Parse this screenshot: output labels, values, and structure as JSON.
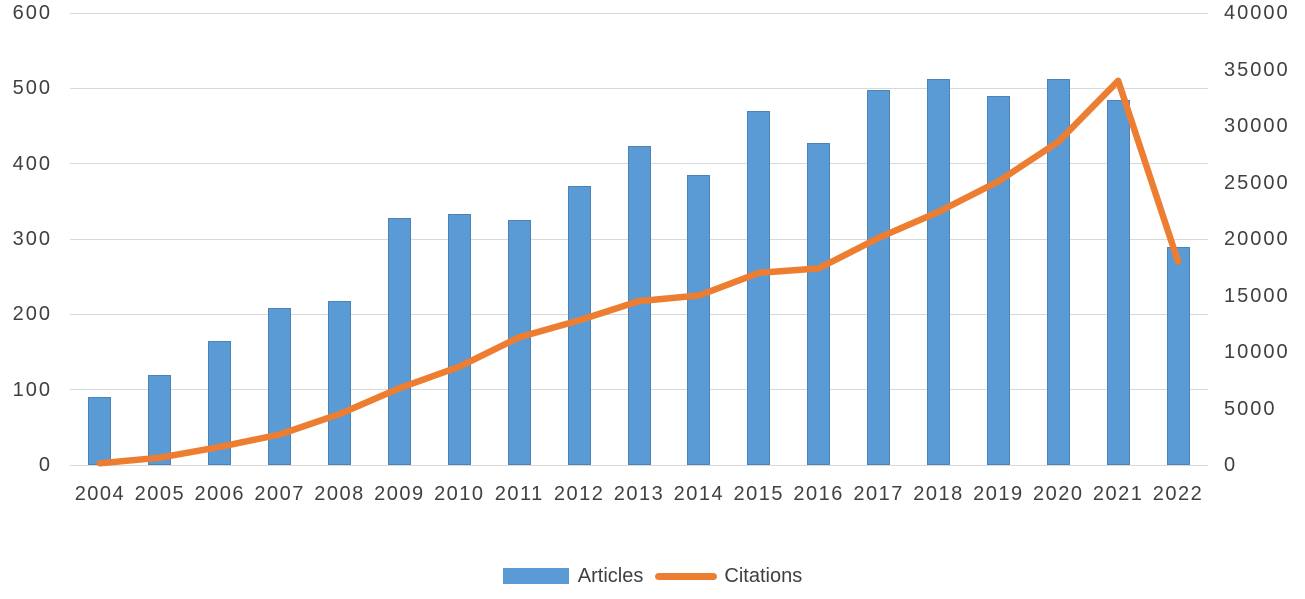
{
  "chart_data": {
    "type": "bar",
    "subtype": "combo-bar-line-dual-axis",
    "categories": [
      "2004",
      "2005",
      "2006",
      "2007",
      "2008",
      "2009",
      "2010",
      "2011",
      "2012",
      "2013",
      "2014",
      "2015",
      "2016",
      "2017",
      "2018",
      "2019",
      "2020",
      "2021",
      "2022"
    ],
    "series": [
      {
        "name": "Articles",
        "type": "bar",
        "axis": "left",
        "color": "#5B9BD5",
        "values": [
          90,
          120,
          165,
          208,
          218,
          328,
          333,
          325,
          370,
          423,
          385,
          470,
          428,
          498,
          512,
          490,
          512,
          484,
          290
        ]
      },
      {
        "name": "Citations",
        "type": "line",
        "axis": "right",
        "color": "#ED7D31",
        "values": [
          150,
          650,
          1600,
          2700,
          4500,
          6800,
          8700,
          11300,
          12800,
          14500,
          15000,
          17000,
          17400,
          20100,
          22400,
          25100,
          28600,
          34000,
          18000
        ]
      }
    ],
    "title": "",
    "xlabel": "",
    "ylabel_left": "",
    "ylabel_right": "",
    "left_axis": {
      "min": 0,
      "max": 600,
      "step": 100,
      "ticks": [
        "600",
        "500",
        "400",
        "300",
        "200",
        "100",
        "0"
      ]
    },
    "right_axis": {
      "min": 0,
      "max": 40000,
      "step": 5000,
      "ticks": [
        "40000",
        "35000",
        "30000",
        "25000",
        "20000",
        "15000",
        "10000",
        "5000",
        "0"
      ]
    },
    "grid": "horizontal-on",
    "legend_position": "bottom"
  },
  "legend": {
    "articles_label": "Articles",
    "citations_label": "Citations"
  },
  "colors": {
    "bar": "#5B9BD5",
    "line": "#ED7D31",
    "grid": "#D9D9D9",
    "text": "#404040",
    "background": "#FFFFFF"
  }
}
